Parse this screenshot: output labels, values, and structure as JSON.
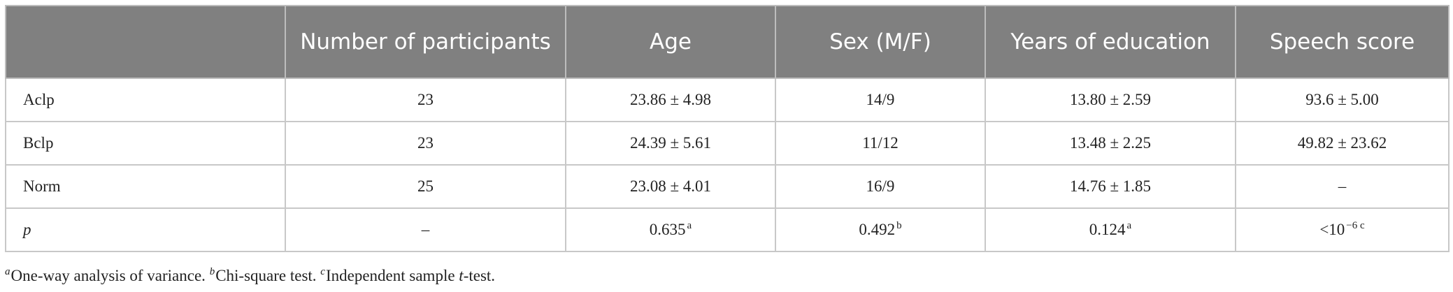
{
  "table": {
    "header": [
      "",
      "Number of participants",
      "Age",
      "Sex (M/F)",
      "Years of education",
      "Speech score"
    ],
    "rows": [
      [
        "Aclp",
        "23",
        "23.86 ± 4.98",
        "14/9",
        "13.80 ± 2.59",
        "93.6 ± 5.00"
      ],
      [
        "Bclp",
        "23",
        "24.39 ± 5.61",
        "11/12",
        "13.48 ± 2.25",
        "49.82 ± 23.62"
      ],
      [
        "Norm",
        "25",
        "23.08 ± 4.01",
        "16/9",
        "14.76 ± 1.85",
        "–"
      ],
      [
        "p",
        "–",
        {
          "text": "0.635",
          "sup": "a"
        },
        {
          "text": "0.492",
          "sup": "b"
        },
        {
          "text": "0.124",
          "sup": "a"
        },
        {
          "text": "<10",
          "sup": "−6 c"
        }
      ]
    ]
  },
  "footnotes": [
    {
      "mark": "a",
      "parts": [
        "One-way analysis of variance."
      ]
    },
    {
      "mark": "b",
      "parts": [
        "Chi-square test."
      ]
    },
    {
      "mark": "c",
      "parts": [
        "Independent sample ",
        "t",
        "-test."
      ]
    }
  ]
}
